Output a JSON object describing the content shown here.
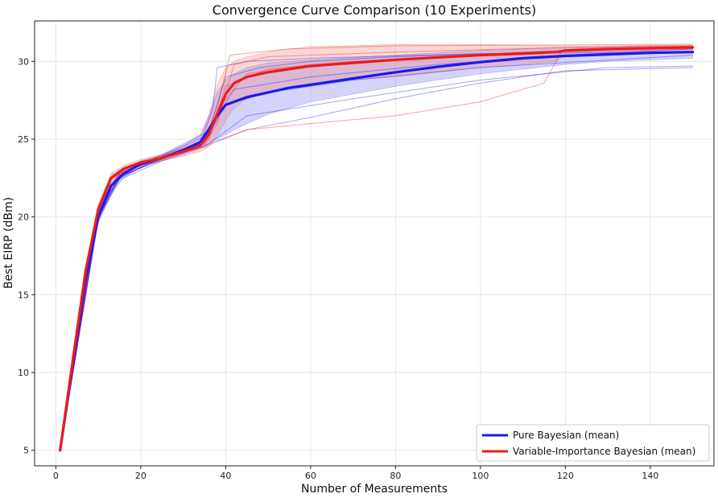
{
  "chart_data": {
    "type": "line",
    "title": "Convergence Curve Comparison (10 Experiments)",
    "xlabel": "Number of Measurements",
    "ylabel": "Best EIRP (dBm)",
    "xlim": [
      -5,
      155
    ],
    "ylim": [
      4,
      32.6
    ],
    "xticks": [
      0,
      20,
      40,
      60,
      80,
      100,
      120,
      140
    ],
    "yticks": [
      5,
      10,
      15,
      20,
      25,
      30
    ],
    "grid": true,
    "legend_position": "bottom-right",
    "series": [
      {
        "name": "Pure Bayesian (mean)",
        "color": "#1a1aee",
        "band_color": "#6666ee",
        "x": [
          1,
          4,
          7,
          10,
          13,
          16,
          20,
          25,
          30,
          34,
          36,
          38,
          40,
          42,
          45,
          50,
          55,
          60,
          70,
          80,
          90,
          100,
          110,
          120,
          130,
          140,
          150
        ],
        "y": [
          5.0,
          10.5,
          16.0,
          20.0,
          22.0,
          22.8,
          23.4,
          23.8,
          24.3,
          24.8,
          25.6,
          26.5,
          27.2,
          27.4,
          27.7,
          28.0,
          28.3,
          28.5,
          28.9,
          29.3,
          29.65,
          29.95,
          30.2,
          30.35,
          30.45,
          30.55,
          30.6
        ],
        "lower": [
          5.0,
          10.4,
          15.7,
          19.6,
          21.6,
          22.5,
          23.2,
          23.6,
          24.0,
          24.4,
          24.8,
          25.0,
          25.3,
          25.6,
          26.0,
          26.6,
          27.0,
          27.4,
          27.9,
          28.4,
          28.8,
          29.2,
          29.5,
          29.8,
          30.0,
          30.1,
          30.2
        ],
        "upper": [
          5.0,
          10.6,
          16.3,
          20.4,
          22.4,
          23.1,
          23.6,
          24.0,
          24.6,
          25.3,
          26.5,
          28.0,
          28.8,
          29.2,
          29.6,
          29.9,
          30.0,
          30.1,
          30.25,
          30.4,
          30.55,
          30.7,
          30.8,
          30.9,
          30.95,
          31.0,
          31.0
        ]
      },
      {
        "name": "Variable-Importance Bayesian (mean)",
        "color": "#ee1a1a",
        "band_color": "#f07070",
        "x": [
          1,
          4,
          7,
          10,
          13,
          16,
          20,
          25,
          30,
          34,
          36,
          38,
          40,
          42,
          45,
          50,
          55,
          60,
          70,
          80,
          90,
          100,
          110,
          118,
          120,
          130,
          140,
          150
        ],
        "y": [
          5.0,
          10.8,
          16.5,
          20.5,
          22.5,
          23.1,
          23.5,
          23.8,
          24.2,
          24.6,
          25.3,
          26.6,
          27.9,
          28.6,
          29.0,
          29.3,
          29.5,
          29.7,
          29.9,
          30.1,
          30.25,
          30.4,
          30.5,
          30.6,
          30.7,
          30.8,
          30.85,
          30.9
        ],
        "lower": [
          5.0,
          10.7,
          16.3,
          20.2,
          22.2,
          22.9,
          23.3,
          23.6,
          23.9,
          24.2,
          24.5,
          25.2,
          26.2,
          27.0,
          27.6,
          28.0,
          28.3,
          28.5,
          28.8,
          29.0,
          29.3,
          29.6,
          29.8,
          30.0,
          30.5,
          30.6,
          30.7,
          30.75
        ],
        "upper": [
          5.0,
          10.9,
          16.7,
          20.8,
          22.8,
          23.3,
          23.7,
          24.0,
          24.5,
          25.0,
          26.5,
          28.5,
          29.6,
          30.0,
          30.3,
          30.6,
          30.8,
          30.95,
          31.0,
          31.1,
          31.1,
          31.1,
          31.05,
          31.0,
          31.0,
          31.0,
          31.05,
          31.05
        ]
      }
    ],
    "individual_runs": [
      {
        "series": "Pure Bayesian (mean)",
        "x": [
          1,
          10,
          15,
          25,
          34,
          37,
          38,
          45,
          60,
          100,
          150
        ],
        "y": [
          5,
          20,
          22.6,
          23.8,
          24.7,
          27.0,
          29.6,
          30.0,
          30.2,
          30.5,
          30.6
        ]
      },
      {
        "series": "Pure Bayesian (mean)",
        "x": [
          1,
          10,
          15,
          25,
          35,
          45,
          60,
          80,
          100,
          120,
          150
        ],
        "y": [
          5,
          19.8,
          22.4,
          23.6,
          24.6,
          25.6,
          26.4,
          27.6,
          28.6,
          29.4,
          29.6
        ]
      },
      {
        "series": "Pure Bayesian (mean)",
        "x": [
          1,
          10,
          15,
          25,
          35,
          40,
          50,
          70,
          100,
          150
        ],
        "y": [
          5,
          20.2,
          22.6,
          23.7,
          24.8,
          27.2,
          28.0,
          28.8,
          29.6,
          30.4
        ]
      },
      {
        "series": "Pure Bayesian (mean)",
        "x": [
          1,
          10,
          15,
          25,
          35,
          42,
          60,
          90,
          120,
          150
        ],
        "y": [
          5,
          20.0,
          22.5,
          23.9,
          25.2,
          28.2,
          29.0,
          29.8,
          30.4,
          30.8
        ]
      },
      {
        "series": "Pure Bayesian (mean)",
        "x": [
          1,
          10,
          15,
          25,
          36,
          40,
          48,
          60,
          80,
          150
        ],
        "y": [
          5,
          20.1,
          22.7,
          24.0,
          25.5,
          29.0,
          29.6,
          30.0,
          30.3,
          30.9
        ]
      },
      {
        "series": "Pure Bayesian (mean)",
        "x": [
          1,
          10,
          15,
          25,
          35,
          45,
          70,
          100,
          130,
          150
        ],
        "y": [
          5,
          19.9,
          22.5,
          23.8,
          24.5,
          26.5,
          27.6,
          28.8,
          29.6,
          29.7
        ]
      },
      {
        "series": "Variable-Importance Bayesian (mean)",
        "x": [
          1,
          10,
          15,
          25,
          35,
          38,
          42,
          50,
          80,
          120,
          150
        ],
        "y": [
          5,
          20.5,
          22.8,
          23.8,
          24.6,
          26.0,
          29.8,
          30.3,
          30.6,
          30.9,
          31.0
        ]
      },
      {
        "series": "Variable-Importance Bayesian (mean)",
        "x": [
          1,
          10,
          15,
          25,
          35,
          40,
          45,
          60,
          90,
          120,
          150
        ],
        "y": [
          5,
          20.4,
          22.7,
          23.9,
          24.7,
          27.6,
          29.2,
          29.8,
          30.3,
          30.7,
          30.9
        ]
      },
      {
        "series": "Variable-Importance Bayesian (mean)",
        "x": [
          1,
          10,
          15,
          25,
          35,
          45,
          60,
          80,
          100,
          115,
          119,
          150
        ],
        "y": [
          5,
          20.6,
          22.9,
          23.8,
          24.5,
          25.6,
          26.0,
          26.5,
          27.4,
          28.6,
          30.6,
          30.8
        ]
      },
      {
        "series": "Variable-Importance Bayesian (mean)",
        "x": [
          1,
          10,
          15,
          25,
          35,
          38,
          41,
          55,
          80,
          150
        ],
        "y": [
          5,
          20.5,
          22.8,
          24.0,
          24.8,
          27.0,
          30.4,
          30.8,
          31.0,
          31.1
        ]
      },
      {
        "series": "Variable-Importance Bayesian (mean)",
        "x": [
          1,
          10,
          15,
          25,
          36,
          40,
          50,
          70,
          110,
          150
        ],
        "y": [
          5,
          20.3,
          22.6,
          23.7,
          25.0,
          28.4,
          29.5,
          30.0,
          30.6,
          30.9
        ]
      }
    ]
  }
}
